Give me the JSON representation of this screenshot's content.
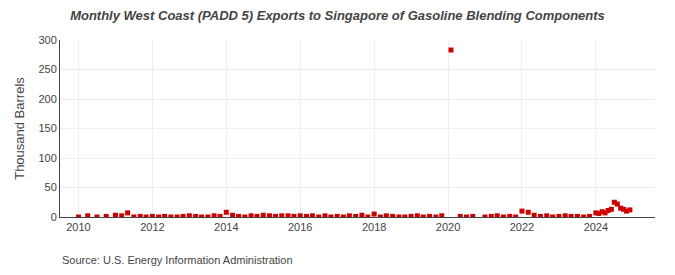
{
  "chart_data": {
    "type": "scatter",
    "title": "Monthly West Coast (PADD 5) Exports to Singapore of Gasoline Blending Components",
    "ylabel": "Thousand Barrels",
    "annotations": [
      "Source: U.S. Energy Information Administration"
    ],
    "color": "#cc0000",
    "marker": "square",
    "grid": true,
    "xlim": [
      2009.5,
      2025.6
    ],
    "xticks": [
      2010,
      2012,
      2014,
      2016,
      2018,
      2020,
      2022,
      2024
    ],
    "ylim": [
      0,
      300
    ],
    "yticks": [
      0,
      50,
      100,
      150,
      200,
      250,
      300
    ],
    "x": [
      2010.0,
      2010.25,
      2010.5,
      2010.75,
      2011.0,
      2011.17,
      2011.33,
      2011.5,
      2011.67,
      2011.83,
      2012.0,
      2012.17,
      2012.33,
      2012.5,
      2012.67,
      2012.83,
      2013.0,
      2013.17,
      2013.33,
      2013.5,
      2013.67,
      2013.83,
      2014.0,
      2014.17,
      2014.33,
      2014.5,
      2014.67,
      2014.83,
      2015.0,
      2015.17,
      2015.33,
      2015.5,
      2015.67,
      2015.83,
      2016.0,
      2016.17,
      2016.33,
      2016.5,
      2016.67,
      2016.83,
      2017.0,
      2017.17,
      2017.33,
      2017.5,
      2017.67,
      2017.83,
      2018.0,
      2018.17,
      2018.33,
      2018.5,
      2018.67,
      2018.83,
      2019.0,
      2019.17,
      2019.33,
      2019.5,
      2019.67,
      2019.83,
      2020.08,
      2020.33,
      2020.5,
      2020.67,
      2021.0,
      2021.17,
      2021.33,
      2021.5,
      2021.67,
      2021.83,
      2022.0,
      2022.17,
      2022.33,
      2022.5,
      2022.67,
      2022.83,
      2023.0,
      2023.17,
      2023.33,
      2023.5,
      2023.67,
      2023.83,
      2024.0,
      2024.08,
      2024.17,
      2024.25,
      2024.33,
      2024.42,
      2024.5,
      2024.58,
      2024.67,
      2024.75,
      2024.83,
      2024.92
    ],
    "values": [
      0,
      2,
      0,
      1,
      3,
      2,
      7,
      0,
      1,
      0,
      1,
      0,
      1,
      0,
      0,
      1,
      2,
      1,
      0,
      0,
      2,
      1,
      8,
      3,
      1,
      0,
      2,
      1,
      3,
      2,
      1,
      2,
      2,
      1,
      2,
      1,
      2,
      0,
      2,
      0,
      1,
      0,
      2,
      1,
      3,
      0,
      5,
      0,
      2,
      1,
      0,
      0,
      1,
      2,
      0,
      1,
      0,
      2,
      283,
      1,
      0,
      1,
      0,
      1,
      2,
      0,
      1,
      0,
      10,
      8,
      3,
      1,
      2,
      0,
      1,
      2,
      1,
      1,
      0,
      1,
      7,
      6,
      9,
      7,
      11,
      13,
      25,
      22,
      15,
      13,
      10,
      12
    ]
  }
}
